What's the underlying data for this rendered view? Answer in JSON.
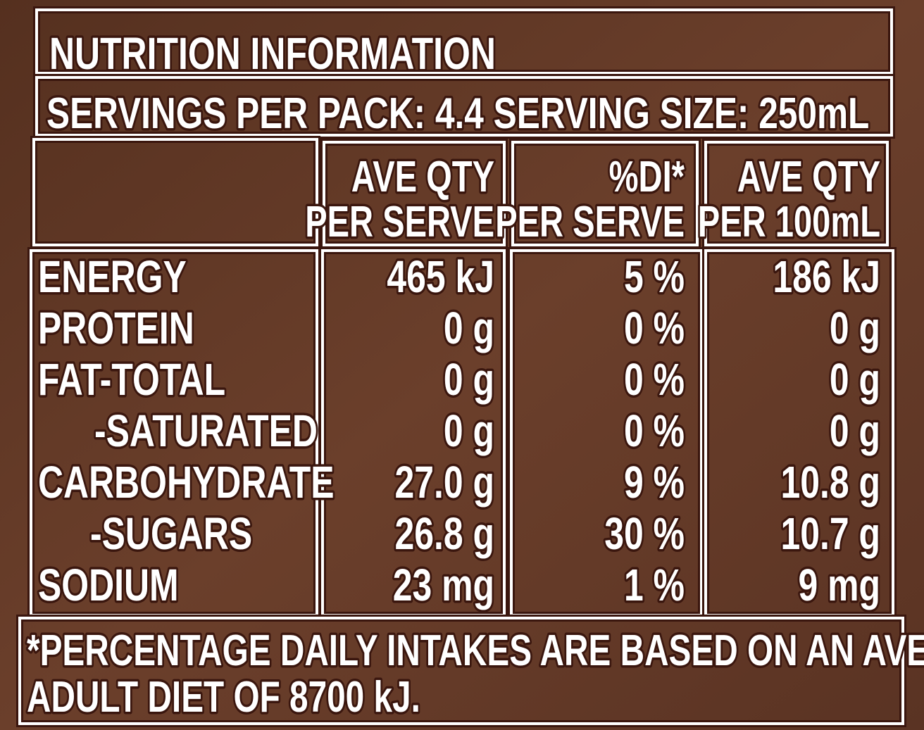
{
  "title": "NUTRITION INFORMATION",
  "servings": "SERVINGS PER PACK: 4.4  SERVING SIZE: 250mL",
  "table": {
    "header": [
      [
        "AVE QTY",
        "PER SERVE"
      ],
      [
        "%DI*",
        "PER SERVE"
      ],
      [
        "AVE QTY",
        "PER 100mL"
      ]
    ],
    "rows": [
      [
        "ENERGY",
        "465 kJ",
        "5 %",
        "186 kJ"
      ],
      [
        "PROTEIN",
        "0 g",
        "0 %",
        "0 g"
      ],
      [
        "FAT-TOTAL",
        "0 g",
        "0 %",
        "0 g"
      ],
      [
        "-SATURATED",
        "0 g",
        "0 %",
        "0 g"
      ],
      [
        "CARBOHYDRATE",
        "27.0 g",
        "9 %",
        "10.8 g"
      ],
      [
        "-SUGARS",
        "26.8 g",
        "30 %",
        "10.7 g"
      ],
      [
        "SODIUM",
        "23 mg",
        "1 %",
        "9 mg"
      ]
    ]
  },
  "footnote": [
    "*PERCENTAGE DAILY INTAKES ARE BASED ON AN AVERAGE",
    "ADULT DIET OF 8700 kJ."
  ]
}
